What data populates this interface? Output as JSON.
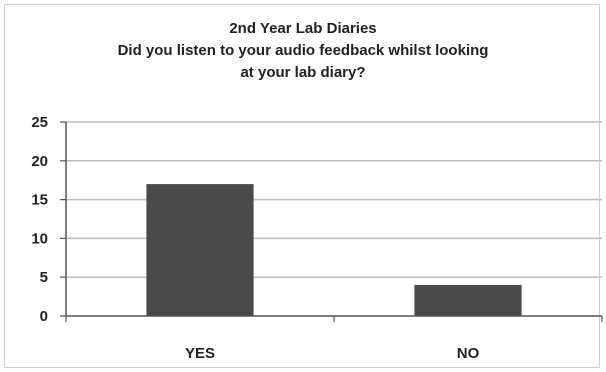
{
  "chart_data": {
    "type": "bar",
    "title_lines": [
      "2nd Year Lab Diaries",
      "Did you listen to your audio feedback whilst looking",
      "at your lab diary?"
    ],
    "categories": [
      "YES",
      "NO"
    ],
    "values": [
      17,
      4
    ],
    "ylim": [
      0,
      25
    ],
    "yticks": [
      0,
      5,
      10,
      15,
      20,
      25
    ],
    "xlabel": "",
    "ylabel": "",
    "grid": true,
    "legend": "none",
    "bar_color": "#4a4a4a",
    "grid_color": "#bdbdbd"
  }
}
